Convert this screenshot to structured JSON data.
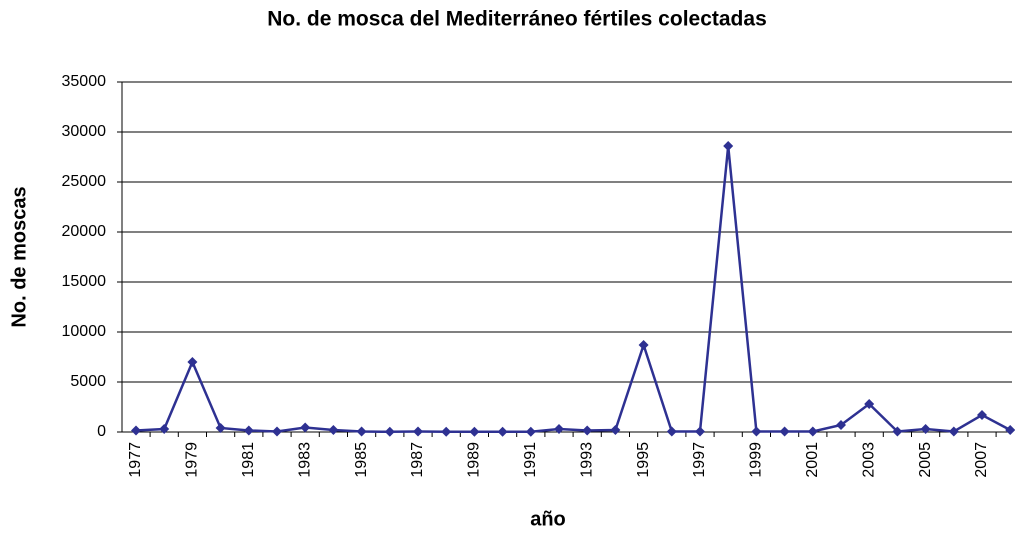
{
  "chart_data": {
    "type": "line",
    "title": "No. de mosca del Mediterráneo fértiles colectadas",
    "x_label": "año",
    "y_label": "No. de moscas",
    "categories": [
      "1977",
      null,
      "1979",
      null,
      "1981",
      null,
      "1983",
      null,
      "1985",
      null,
      "1987",
      null,
      "1989",
      null,
      "1991",
      null,
      "1993",
      null,
      "1995",
      null,
      "1997",
      null,
      "1999",
      null,
      "2001",
      null,
      "2003",
      null,
      "2005",
      null,
      "2007",
      null
    ],
    "series": [
      {
        "name": "No. de moscas",
        "color": "#2e3192",
        "values": [
          150,
          300,
          7000,
          400,
          150,
          50,
          450,
          200,
          50,
          20,
          50,
          20,
          20,
          20,
          20,
          300,
          150,
          200,
          8700,
          50,
          50,
          28600,
          50,
          50,
          50,
          700,
          2800,
          50,
          300,
          50,
          1700,
          200
        ]
      }
    ],
    "ylim": [
      0,
      35000
    ],
    "yticks": [
      0,
      5000,
      10000,
      15000,
      20000,
      25000,
      30000,
      35000
    ],
    "grid": true
  }
}
